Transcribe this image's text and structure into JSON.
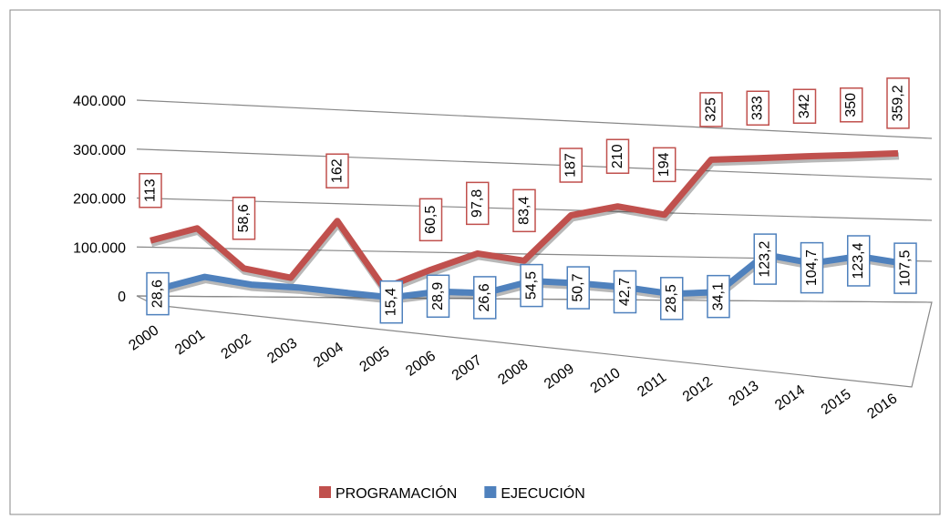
{
  "chart_data": {
    "type": "line",
    "categories": [
      "2000",
      "2001",
      "2002",
      "2003",
      "2004",
      "2005",
      "2006",
      "2007",
      "2008",
      "2009",
      "2010",
      "2011",
      "2012",
      "2013",
      "2014",
      "2015",
      "2016"
    ],
    "series": [
      {
        "name": "PROGRAMACIÓN",
        "color": "#c0504d",
        "values": [
          113000,
          140000,
          58600,
          40000,
          162000,
          20000,
          60500,
          97800,
          83400,
          187000,
          210000,
          194000,
          325000,
          333000,
          342000,
          350000,
          359200
        ],
        "value_labels": [
          "113",
          null,
          "58,6",
          null,
          "162",
          null,
          "60,5",
          "97,8",
          "83,4",
          "187",
          "210",
          "194",
          "325",
          "333",
          "342",
          "350",
          "359,2"
        ]
      },
      {
        "name": "EJECUCIÓN",
        "color": "#4f81bd",
        "values": [
          28600,
          55000,
          40000,
          35000,
          25000,
          15400,
          28900,
          26600,
          54500,
          50700,
          42700,
          28500,
          34100,
          123200,
          104700,
          123400,
          107500
        ],
        "value_labels": [
          "28,6",
          null,
          null,
          null,
          null,
          "15,4",
          "28,9",
          "26,6",
          "54,5",
          "50,7",
          "42,7",
          "28,5",
          "34,1",
          "123,2",
          "104,7",
          "123,4",
          "107,5"
        ]
      }
    ],
    "ylim": [
      0,
      400000
    ],
    "yticks": [
      0,
      {
        "value": 100000,
        "label": "100.000"
      },
      {
        "value": 200000,
        "label": "200.000"
      },
      {
        "value": 300000,
        "label": "300.000"
      },
      {
        "value": 400000,
        "label": "400.000"
      }
    ],
    "grid": true,
    "legend": "bottom"
  }
}
